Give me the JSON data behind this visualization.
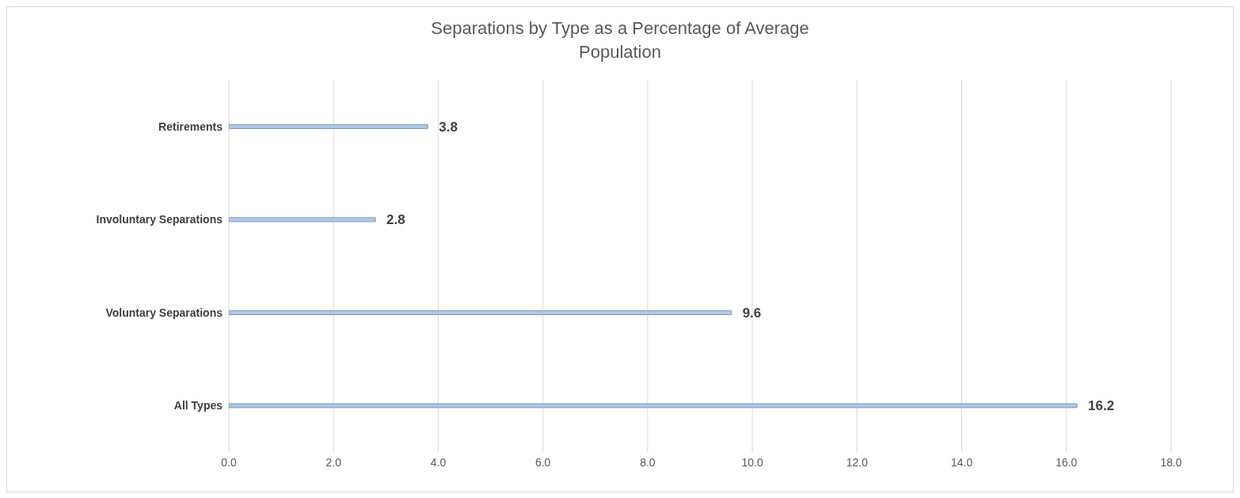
{
  "chart_data": {
    "type": "bar",
    "orientation": "horizontal",
    "title": "Separations by Type as a Percentage of Average Population",
    "categories": [
      "Retirements",
      "Involuntary Separations",
      "Voluntary Separations",
      "All Types"
    ],
    "values": [
      3.8,
      2.8,
      9.6,
      16.2
    ],
    "color": "#adc8e8",
    "xlim": [
      0,
      18
    ],
    "xticks": [
      {
        "value": 0,
        "label": "0.0"
      },
      {
        "value": 2,
        "label": "2.0"
      },
      {
        "value": 4,
        "label": "4.0"
      },
      {
        "value": 6,
        "label": "6.0"
      },
      {
        "value": 8,
        "label": "8.0"
      },
      {
        "value": 10,
        "label": "10.0"
      },
      {
        "value": 12,
        "label": "12.0"
      },
      {
        "value": 14,
        "label": "14.0"
      },
      {
        "value": 16,
        "label": "16.0"
      },
      {
        "value": 18,
        "label": "18.0"
      }
    ],
    "grid": "x",
    "legend": false,
    "data_labels": true
  }
}
